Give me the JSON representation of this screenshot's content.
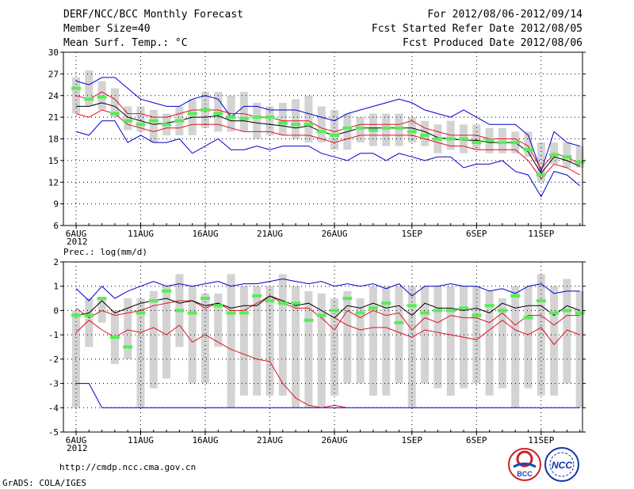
{
  "header": {
    "left": [
      "DERF/NCC/BCC Monthly Forecast",
      "Member Size=40",
      "Mean Surf. Temp.: °C"
    ],
    "right": [
      "For 2012/08/06-2012/09/14",
      "Fcst Started Refer Date 2012/08/05",
      "Fcst Produced Date 2012/08/06"
    ]
  },
  "footer": {
    "url": "http://cmdp.ncc.cma.gov.cn",
    "credit": "GrADS: COLA/IGES"
  },
  "logos": {
    "bcc_text": "BCC",
    "ncc_text": "NCC"
  },
  "colors": {
    "box": "#d3d3d3",
    "mean": "#000000",
    "ctrl": "#55ee55",
    "inner": "#dd1122",
    "outer": "#0000cc"
  },
  "chart_data": [
    {
      "type": "box-whisker-line",
      "title": "Mean Surf. Temp.: °C",
      "xticks": [
        {
          "day": 0,
          "label": "6AUG",
          "sub": "2012"
        },
        {
          "day": 5,
          "label": "11AUG"
        },
        {
          "day": 10,
          "label": "16AUG"
        },
        {
          "day": 15,
          "label": "21AUG"
        },
        {
          "day": 20,
          "label": "26AUG"
        },
        {
          "day": 26,
          "label": "1SEP"
        },
        {
          "day": 31,
          "label": "6SEP"
        },
        {
          "day": 36,
          "label": "11SEP"
        }
      ],
      "ylim": [
        6,
        30
      ],
      "yticks": [
        6,
        9,
        12,
        15,
        18,
        21,
        24,
        27,
        30
      ],
      "box_low": [
        21.5,
        22.5,
        22.0,
        21.0,
        19.2,
        19.0,
        17.5,
        18.5,
        18.5,
        18.5,
        19.5,
        19.0,
        19.0,
        19.0,
        18.0,
        18.5,
        18.5,
        18.0,
        17.5,
        17.5,
        16.5,
        16.5,
        17.5,
        17.0,
        17.0,
        17.0,
        17.5,
        17.0,
        16.0,
        16.5,
        16.0,
        16.5,
        16.0,
        16.0,
        16.0,
        15.5,
        12.0,
        14.5,
        14.0,
        14.0
      ],
      "box_high": [
        26.5,
        27.5,
        26.0,
        25.0,
        22.5,
        22.5,
        22.0,
        21.5,
        22.5,
        23.5,
        24.5,
        24.5,
        24.0,
        24.5,
        23.0,
        22.5,
        23.0,
        23.5,
        24.0,
        22.5,
        22.0,
        21.5,
        21.0,
        21.5,
        21.5,
        21.5,
        21.0,
        20.5,
        20.0,
        20.5,
        20.0,
        20.0,
        19.5,
        19.5,
        19.0,
        19.0,
        17.5,
        17.5,
        17.5,
        17.0
      ],
      "outer_high": [
        26.0,
        25.5,
        26.5,
        26.5,
        25.0,
        23.5,
        23.0,
        22.5,
        22.5,
        23.5,
        24.0,
        23.5,
        21.0,
        22.5,
        22.5,
        22.0,
        22.0,
        22.0,
        21.5,
        21.0,
        20.5,
        21.5,
        22.0,
        22.5,
        23.0,
        23.5,
        23.0,
        22.0,
        21.5,
        21.0,
        22.0,
        21.0,
        20.0,
        20.0,
        20.0,
        18.5,
        13.5,
        19.0,
        17.5,
        17.0
      ],
      "inner_high": [
        24.0,
        23.5,
        24.5,
        23.5,
        21.5,
        21.5,
        21.0,
        21.0,
        21.5,
        22.0,
        22.0,
        22.0,
        21.5,
        21.5,
        21.0,
        21.0,
        20.5,
        20.5,
        20.5,
        19.5,
        19.0,
        19.5,
        20.0,
        20.0,
        20.0,
        20.0,
        20.5,
        19.5,
        19.0,
        18.5,
        18.5,
        18.5,
        18.0,
        18.0,
        18.0,
        17.0,
        13.8,
        16.0,
        15.5,
        14.5
      ],
      "mean": [
        22.5,
        22.5,
        23.0,
        22.5,
        21.0,
        20.5,
        20.0,
        20.2,
        20.5,
        21.0,
        21.0,
        21.2,
        20.5,
        20.5,
        20.2,
        20.0,
        19.8,
        19.5,
        19.8,
        19.0,
        18.5,
        19.0,
        19.5,
        19.5,
        19.5,
        19.5,
        19.5,
        19.0,
        18.2,
        18.0,
        17.8,
        17.8,
        17.5,
        17.5,
        17.5,
        16.2,
        13.2,
        15.5,
        15.0,
        14.2
      ],
      "inner_low": [
        21.5,
        21.0,
        22.0,
        21.5,
        20.0,
        19.5,
        19.0,
        19.5,
        19.5,
        20.0,
        20.0,
        20.0,
        19.5,
        19.0,
        19.0,
        19.0,
        18.5,
        18.5,
        18.5,
        18.0,
        17.5,
        18.0,
        18.5,
        18.5,
        18.5,
        18.5,
        18.5,
        18.0,
        17.5,
        17.0,
        17.0,
        16.5,
        16.5,
        16.5,
        16.5,
        15.0,
        12.5,
        14.5,
        14.0,
        13.0
      ],
      "outer_low": [
        19.0,
        18.5,
        20.5,
        20.5,
        17.5,
        18.5,
        17.5,
        17.5,
        18.0,
        16.0,
        17.0,
        18.0,
        16.5,
        16.5,
        17.0,
        16.5,
        17.0,
        17.0,
        17.0,
        16.0,
        15.5,
        15.0,
        16.0,
        16.0,
        15.0,
        16.0,
        15.5,
        15.0,
        15.5,
        15.5,
        14.0,
        14.5,
        14.5,
        15.0,
        13.5,
        13.0,
        10.0,
        13.5,
        13.0,
        11.5
      ],
      "control": [
        25.0,
        23.5,
        23.8,
        21.5,
        20.5,
        20.0,
        20.5,
        20.0,
        20.5,
        21.5,
        22.0,
        21.5,
        21.0,
        20.8,
        21.0,
        21.0,
        20.2,
        20.0,
        20.0,
        19.0,
        18.5,
        19.5,
        19.5,
        19.2,
        19.5,
        19.5,
        19.0,
        18.5,
        18.0,
        18.0,
        18.0,
        17.5,
        17.8,
        17.5,
        17.5,
        16.5,
        13.0,
        15.8,
        15.5,
        14.8
      ]
    },
    {
      "type": "box-whisker-line",
      "title": "Prec.: log(mm/d)",
      "xticks": [
        {
          "day": 0,
          "label": "6AUG",
          "sub": "2012"
        },
        {
          "day": 5,
          "label": "11AUG"
        },
        {
          "day": 10,
          "label": "16AUG"
        },
        {
          "day": 15,
          "label": "21AUG"
        },
        {
          "day": 20,
          "label": "26AUG"
        },
        {
          "day": 26,
          "label": "1SEP"
        },
        {
          "day": 31,
          "label": "6SEP"
        },
        {
          "day": 36,
          "label": "11SEP"
        }
      ],
      "ylim": [
        -5,
        2
      ],
      "yticks": [
        -5,
        -4,
        -3,
        -2,
        -1,
        0,
        1,
        2
      ],
      "box_low": [
        -4.0,
        -1.5,
        -0.5,
        -2.2,
        -2.0,
        -4.0,
        -3.2,
        -2.8,
        -1.5,
        -3.0,
        -3.0,
        -1.5,
        -4.0,
        -3.5,
        -3.5,
        -3.5,
        -3.5,
        -4.0,
        -4.0,
        -4.0,
        -3.5,
        -3.0,
        -3.0,
        -3.5,
        -3.5,
        -3.0,
        -4.0,
        -3.0,
        -3.2,
        -3.5,
        -3.2,
        -3.0,
        -3.5,
        -3.2,
        -4.0,
        -3.2,
        -3.5,
        -3.5,
        -3.0,
        -4.0
      ],
      "box_high": [
        0.0,
        0.5,
        0.5,
        0.0,
        0.5,
        0.5,
        0.8,
        1.0,
        1.5,
        1.0,
        0.7,
        0.7,
        1.5,
        1.0,
        1.0,
        1.0,
        1.5,
        1.0,
        0.8,
        0.7,
        0.5,
        0.8,
        0.5,
        1.0,
        1.0,
        1.0,
        1.0,
        1.0,
        1.0,
        1.0,
        1.0,
        1.0,
        0.8,
        0.5,
        1.0,
        1.0,
        1.5,
        1.0,
        1.3,
        0.8
      ],
      "outer_high": [
        0.9,
        0.4,
        1.0,
        0.5,
        0.8,
        1.0,
        1.2,
        1.0,
        1.1,
        1.0,
        1.1,
        1.2,
        1.0,
        1.1,
        1.1,
        1.2,
        1.3,
        1.2,
        1.1,
        1.2,
        1.0,
        1.1,
        1.0,
        1.1,
        0.9,
        1.1,
        0.6,
        1.0,
        1.0,
        1.1,
        1.0,
        1.0,
        0.8,
        0.9,
        0.7,
        1.0,
        1.1,
        0.7,
        0.8,
        0.8
      ],
      "mean": [
        -0.2,
        -0.1,
        0.4,
        -0.1,
        0.1,
        0.3,
        0.4,
        0.5,
        0.3,
        0.4,
        0.2,
        0.3,
        0.1,
        0.2,
        0.2,
        0.6,
        0.4,
        0.2,
        0.3,
        0.0,
        -0.3,
        0.2,
        0.1,
        0.3,
        0.1,
        0.2,
        -0.2,
        0.3,
        0.1,
        0.1,
        0.0,
        0.1,
        -0.1,
        0.3,
        0.1,
        0.2,
        0.2,
        -0.2,
        0.2,
        0.0
      ],
      "inner_high": [
        0.1,
        -0.3,
        0.0,
        -0.2,
        -0.1,
        0.0,
        0.2,
        0.3,
        0.4,
        0.4,
        0.1,
        0.3,
        0.0,
        0.0,
        0.3,
        0.6,
        0.3,
        0.1,
        0.1,
        -0.3,
        -0.8,
        0.0,
        -0.3,
        0.0,
        -0.2,
        -0.1,
        -0.8,
        -0.3,
        -0.5,
        -0.2,
        -0.3,
        -0.3,
        -0.5,
        -0.1,
        -0.6,
        -0.2,
        -0.2,
        -0.6,
        -0.2,
        -0.2
      ],
      "inner_low": [
        -0.9,
        -0.4,
        -0.8,
        -1.1,
        -0.8,
        -0.9,
        -0.7,
        -1.0,
        -0.6,
        -1.3,
        -1.0,
        -1.3,
        -1.6,
        -1.8,
        -2.0,
        -2.1,
        -3.0,
        -3.6,
        -3.9,
        -4.0,
        -3.9,
        -4.0,
        null,
        null,
        null,
        null,
        null,
        null,
        null,
        null,
        null,
        null,
        null,
        null,
        null,
        null,
        null,
        null,
        null,
        null
      ],
      "inner_low2": [
        null,
        null,
        null,
        null,
        null,
        null,
        null,
        null,
        null,
        null,
        null,
        null,
        null,
        null,
        null,
        null,
        null,
        null,
        null,
        null,
        -0.3,
        -0.6,
        -0.8,
        -0.7,
        -0.7,
        -0.9,
        -1.1,
        -0.8,
        -0.9,
        -1.0,
        -1.1,
        -1.2,
        -0.8,
        -0.4,
        -0.8,
        -1.0,
        -0.7,
        -1.4,
        -0.8,
        -1.0
      ],
      "outer_low": [
        -3.0,
        -3.0,
        -4.0,
        -4.0,
        -4.0,
        -4.0,
        -4.0,
        -4.0,
        -4.0,
        -4.0,
        -4.0,
        -4.0,
        -4.0,
        -4.0,
        -4.0,
        -4.0,
        -4.0,
        -4.0,
        -4.0,
        -4.0,
        -4.0,
        -4.0,
        -4.0,
        -4.0,
        -4.0,
        -4.0,
        -4.0,
        -4.0,
        -4.0,
        -4.0,
        -4.0,
        -4.0,
        -4.0,
        -4.0,
        -4.0,
        -4.0,
        -4.0,
        -4.0,
        -4.0,
        -4.0
      ],
      "control": [
        -0.2,
        -0.2,
        0.5,
        -1.1,
        -1.5,
        -0.1,
        0.4,
        0.8,
        0.0,
        -0.1,
        0.5,
        0.2,
        -0.1,
        -0.1,
        0.6,
        0.4,
        0.3,
        0.3,
        -0.4,
        -0.2,
        0.0,
        0.5,
        -0.1,
        0.1,
        0.3,
        -0.5,
        0.2,
        -0.1,
        0.0,
        0.0,
        0.1,
        -0.2,
        0.2,
        0.0,
        0.6,
        -0.3,
        0.4,
        -0.1,
        0.0,
        -0.1
      ]
    }
  ]
}
